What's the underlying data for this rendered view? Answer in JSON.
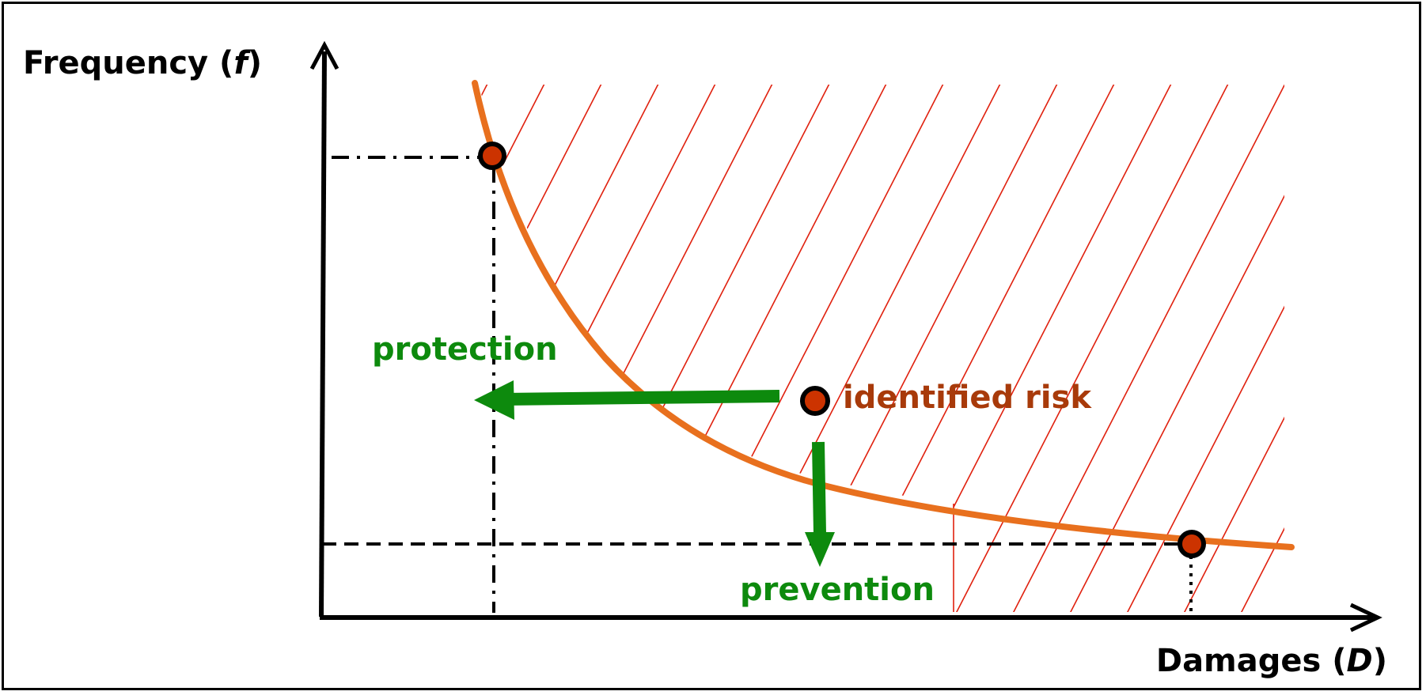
{
  "axes": {
    "y_label": "Frequency (",
    "y_symbol": "f",
    "y_close": ")",
    "x_label": "Damages (",
    "x_symbol": "D",
    "x_close": ")"
  },
  "labels": {
    "protection": "protection",
    "prevention": "prevention",
    "identified_risk": "identified risk"
  },
  "colors": {
    "curve": "#e8701e",
    "hatch": "#e0200e",
    "point_fill": "#cc3300",
    "arrow": "#0d8a0d",
    "risk_text": "#a83a0a",
    "action_text": "#0d8a0d",
    "axis": "#000000"
  }
}
